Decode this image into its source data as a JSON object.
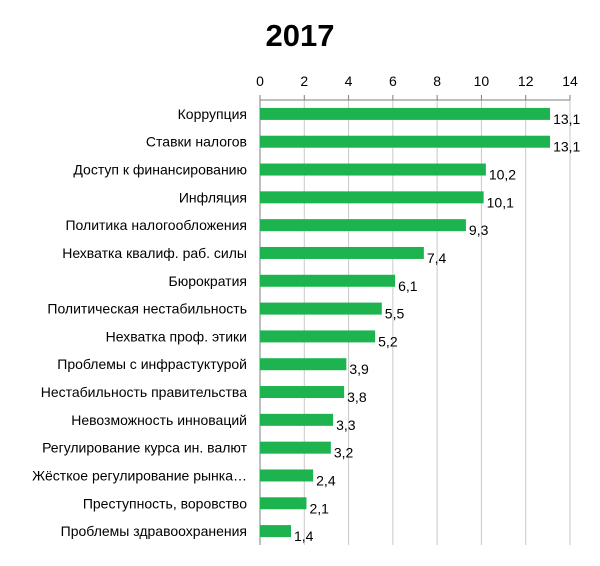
{
  "colors": {
    "bar": "#1db34f",
    "grid": "#c8c8c8",
    "axis": "#7f7f7f"
  },
  "chart_data": {
    "type": "bar",
    "orientation": "horizontal",
    "title": "2017",
    "xlabel": "",
    "ylabel": "",
    "xlim": [
      0,
      14
    ],
    "x_ticks": [
      0,
      2,
      4,
      6,
      8,
      10,
      12,
      14
    ],
    "x_axis_position": "top",
    "grid": true,
    "legend": "none",
    "categories": [
      "Коррупция",
      "Ставки налогов",
      "Доступ к финансированию",
      "Инфляция",
      "Политика налогообложения",
      "Нехватка  квалиф. раб. силы",
      "Бюрократия",
      "Политическая нестабильность",
      "Нехватка  проф.  этики",
      "Проблемы  с инфрастуктурой",
      "Нестабильность правительства",
      "Невозможность  инноваций",
      "Регулирование курса ин. валют",
      "Жёсткое регулирование рынка…",
      "Преступность, воровство",
      "Проблемы здравоохранения"
    ],
    "values": [
      13.1,
      13.1,
      10.2,
      10.1,
      9.3,
      7.4,
      6.1,
      5.5,
      5.2,
      3.9,
      3.8,
      3.3,
      3.2,
      2.4,
      2.1,
      1.4
    ],
    "value_labels": [
      "13,1",
      "13,1",
      "10,2",
      "10,1",
      "9,3",
      "7,4",
      "6,1",
      "5,5",
      "5,2",
      "3,9",
      "3,8",
      "3,3",
      "3,2",
      "2,4",
      "2,1",
      "1,4"
    ]
  }
}
